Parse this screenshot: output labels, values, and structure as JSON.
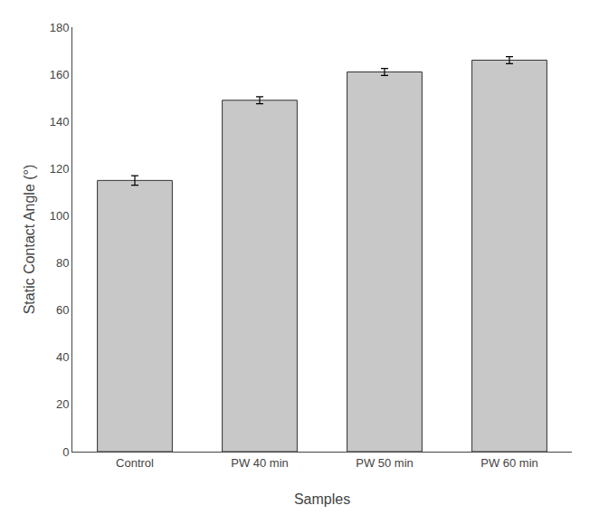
{
  "chart_data": {
    "type": "bar",
    "categories": [
      "Control",
      "PW 40 min",
      "PW 50 min",
      "PW 60 min"
    ],
    "values": [
      115,
      149,
      161,
      166
    ],
    "errors": [
      2,
      1.5,
      1.5,
      1.5
    ],
    "color": "#c8c8c8",
    "xlabel": "Samples",
    "ylabel": "Static Contact Angle (°)",
    "ylim": [
      0,
      180
    ],
    "yticks": [
      0,
      20,
      40,
      60,
      80,
      100,
      120,
      140,
      160,
      180
    ],
    "grid": false
  }
}
